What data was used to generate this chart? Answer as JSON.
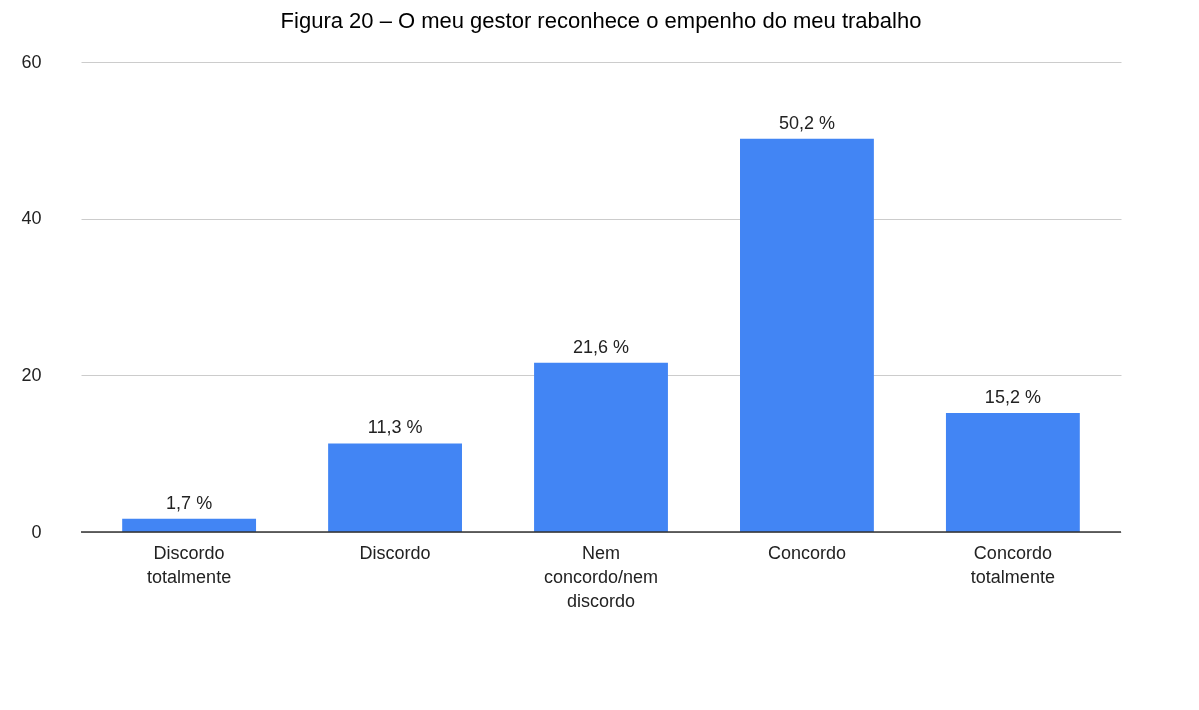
{
  "chart_data": {
    "type": "bar",
    "title": "Figura 20 – O meu gestor reconhece o empenho do meu trabalho",
    "categories": [
      "Discordo totalmente",
      "Discordo",
      "Nem concordo/nem discordo",
      "Concordo",
      "Concordo totalmente"
    ],
    "values": [
      1.7,
      11.3,
      21.6,
      50.2,
      15.2
    ],
    "value_labels": [
      "1,7 %",
      "11,3 %",
      "21,6 %",
      "50,2 %",
      "15,2 %"
    ],
    "color": "#4285f4",
    "ylim": [
      0,
      60
    ],
    "yticks": [
      0,
      20,
      40,
      60
    ],
    "grid": "y"
  }
}
